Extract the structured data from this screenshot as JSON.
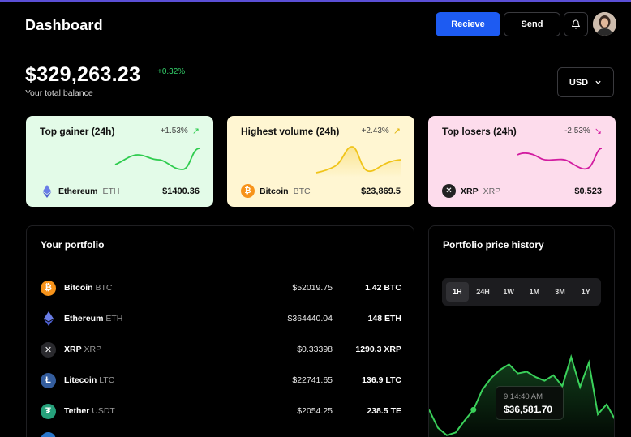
{
  "header": {
    "title": "Dashboard",
    "receive_label": "Recieve",
    "send_label": "Send",
    "bell_icon": "bell-icon",
    "avatar_icon": "user-avatar"
  },
  "balance": {
    "amount": "$329,263.23",
    "change": "+0.32%",
    "label": "Your total balance",
    "currency": "USD"
  },
  "cards": [
    {
      "title": "Top gainer (24h)",
      "change": "+1.53%",
      "arrow": "↗",
      "coin": "Ethereum",
      "symbol": "ETH",
      "value": "$1400.36",
      "color": "#2fcc4f"
    },
    {
      "title": "Highest volume (24h)",
      "change": "+2.43%",
      "arrow": "↗",
      "coin": "Bitcoin",
      "symbol": "BTC",
      "value": "$23,869.5",
      "color": "#f0c419"
    },
    {
      "title": "Top losers (24h)",
      "change": "-2.53%",
      "arrow": "↘",
      "coin": "XRP",
      "symbol": "XRP",
      "value": "$0.523",
      "color": "#d21ca0"
    }
  ],
  "portfolio": {
    "title": "Your portfolio",
    "rows": [
      {
        "name": "Bitcoin",
        "symbol": "BTC",
        "price": "$52019.75",
        "amount": "1.42 BTC",
        "icon": "bitcoin-icon"
      },
      {
        "name": "Ethereum",
        "symbol": "ETH",
        "price": "$364440.04",
        "amount": "148 ETH",
        "icon": "ethereum-icon"
      },
      {
        "name": "XRP",
        "symbol": "XRP",
        "price": "$0.33398",
        "amount": "1290.3 XRP",
        "icon": "xrp-icon"
      },
      {
        "name": "Litecoin",
        "symbol": "LTC",
        "price": "$22741.65",
        "amount": "136.9 LTC",
        "icon": "litecoin-icon"
      },
      {
        "name": "Tether",
        "symbol": "USDT",
        "price": "$2054.25",
        "amount": "238.5 TE",
        "icon": "tether-icon"
      }
    ]
  },
  "history": {
    "title": "Portfolio price history",
    "ranges": [
      "1H",
      "24H",
      "1W",
      "1M",
      "3M",
      "1Y"
    ],
    "active_range": "1H",
    "tooltip_time": "9:14:40 AM",
    "tooltip_value": "$36,581.70",
    "line_color": "#3ad05a"
  },
  "chart_data": {
    "type": "line",
    "title": "Portfolio price history",
    "values": [
      30,
      10,
      2,
      5,
      18,
      30,
      52,
      65,
      74,
      80,
      70,
      72,
      66,
      62,
      68,
      56,
      88,
      55,
      82,
      25,
      36,
      18
    ]
  }
}
